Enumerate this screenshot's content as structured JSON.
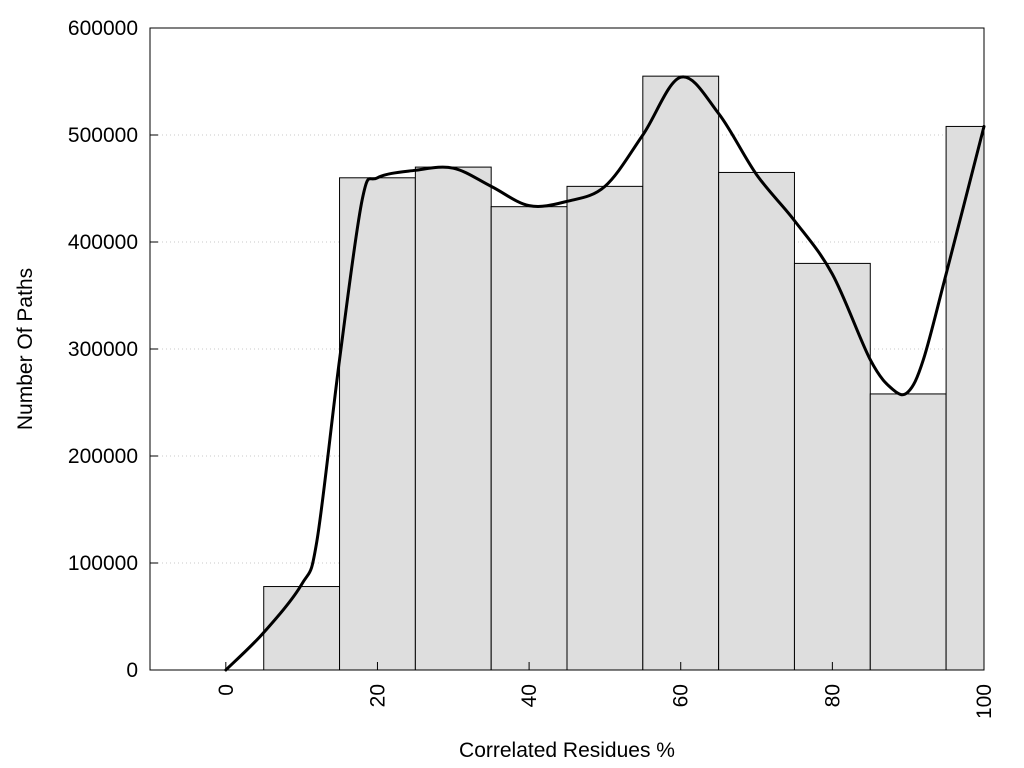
{
  "chart_data": {
    "type": "bar",
    "title": "",
    "xlabel": "Correlated Residues %",
    "ylabel": "Number Of Paths",
    "xlim": [
      -10,
      100
    ],
    "ylim": [
      0,
      600000
    ],
    "xticks": [
      "0",
      "20",
      "40",
      "60",
      "80",
      "100"
    ],
    "yticks": [
      "0",
      "100000",
      "200000",
      "300000",
      "400000",
      "500000",
      "600000"
    ],
    "grid": "horizontal dotted",
    "bar_width": 10,
    "bars": {
      "x": [
        10,
        20,
        30,
        40,
        50,
        60,
        70,
        80,
        90,
        100
      ],
      "values": [
        78000,
        460000,
        470000,
        433000,
        452000,
        555000,
        465000,
        380000,
        258000,
        508000
      ]
    },
    "curve": {
      "x": [
        0,
        5,
        10,
        12,
        15,
        18,
        20,
        25,
        30,
        35,
        40,
        45,
        50,
        55,
        60,
        65,
        70,
        75,
        80,
        85,
        88,
        90,
        92,
        95,
        100
      ],
      "values": [
        0,
        35000,
        80000,
        120000,
        290000,
        440000,
        460000,
        467000,
        469000,
        452000,
        434000,
        438000,
        452000,
        500000,
        554000,
        520000,
        463000,
        420000,
        370000,
        290000,
        262000,
        260000,
        290000,
        370000,
        508000
      ]
    },
    "colors": {
      "bar_fill": "#dedede",
      "bar_stroke": "#000000",
      "curve": "#000000",
      "grid": "#c8c8c8"
    }
  }
}
